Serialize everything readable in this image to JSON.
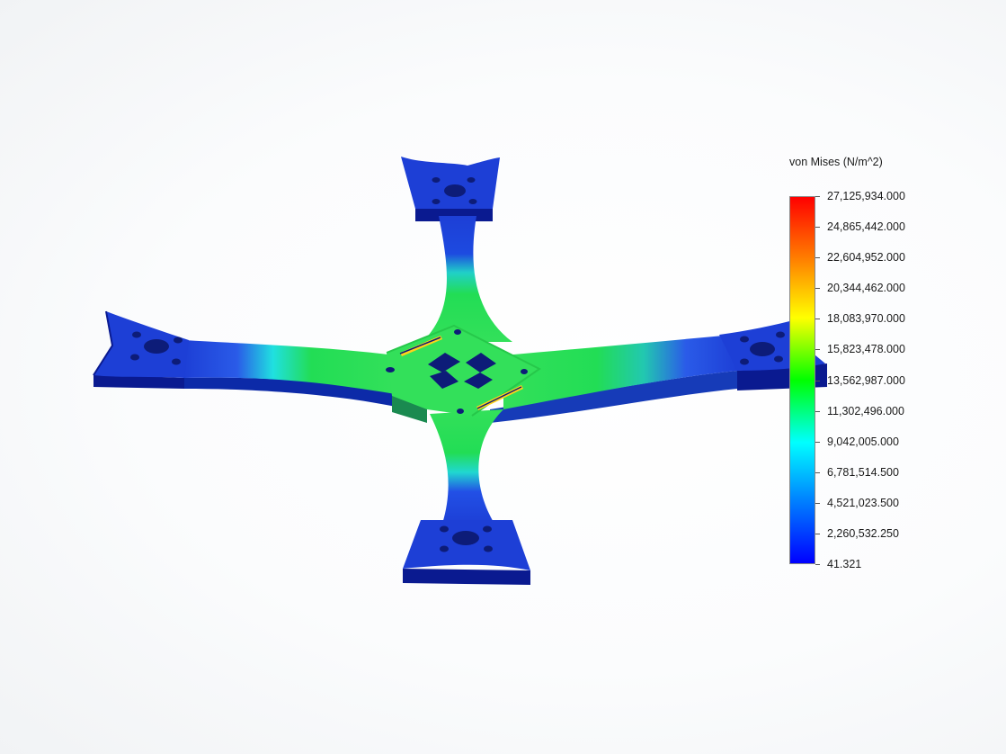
{
  "legend": {
    "title": "von Mises (N/m^2)",
    "ticks": [
      "27,125,934.000",
      "24,865,442.000",
      "22,604,952.000",
      "20,344,462.000",
      "18,083,970.000",
      "15,823,478.000",
      "13,562,987.000",
      "11,302,496.000",
      "9,042,005.000",
      "6,781,514.500",
      "4,521,023.500",
      "2,260,532.250",
      "41.321"
    ],
    "colors": [
      "#ff0000",
      "#ff8000",
      "#ffff00",
      "#00ff00",
      "#00ffff",
      "#0080ff",
      "#0000ff"
    ]
  },
  "model": {
    "name": "quadcopter-frame-stress-plot",
    "arm_color": "#22dd33",
    "center_color": "#33e05a",
    "mount_color": "#1d3fd6",
    "side_color": "#0a1a90",
    "hotspot_color": "#ffd21a"
  }
}
